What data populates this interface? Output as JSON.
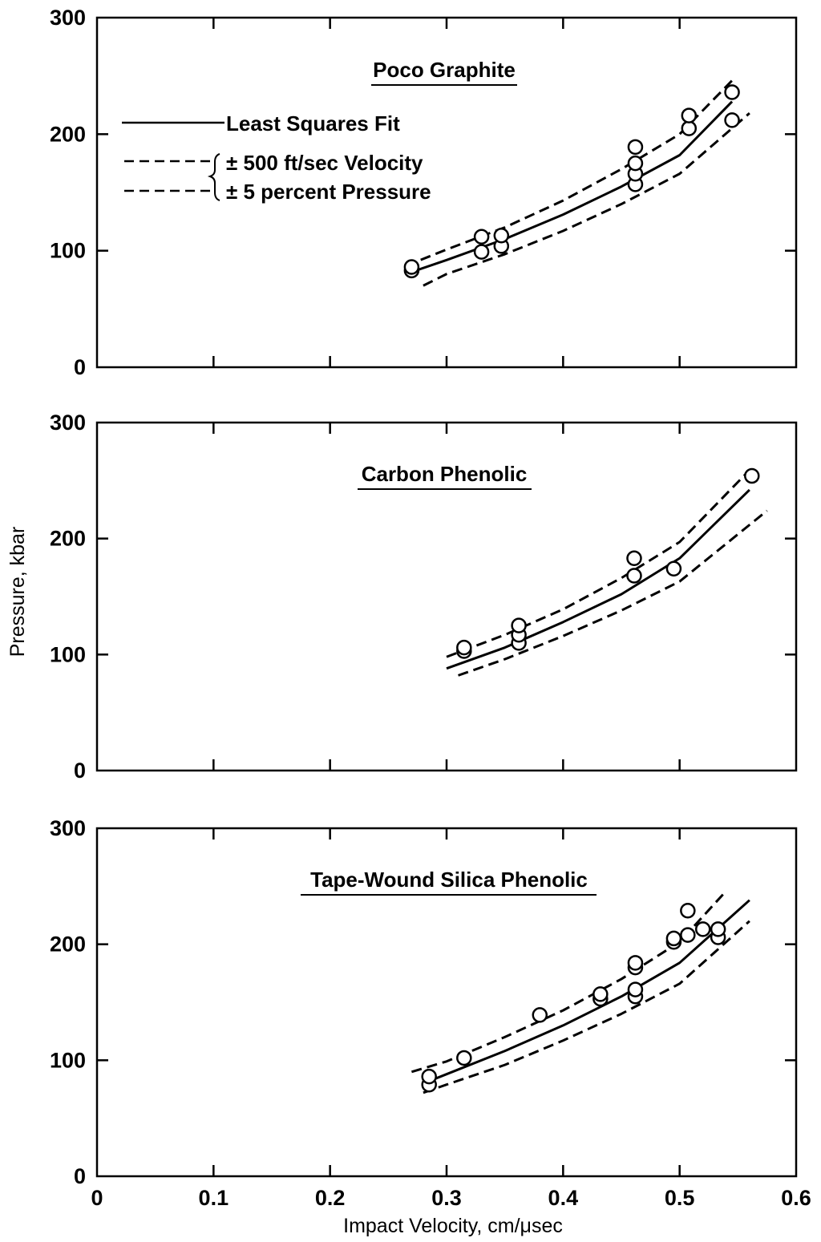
{
  "chart_data": [
    {
      "type": "scatter",
      "title": "Poco Graphite",
      "xlabel": "Impact Velocity, cm/μsec",
      "ylabel": "Pressure, kbar",
      "xlim": [
        0,
        0.6
      ],
      "ylim": [
        0,
        300
      ],
      "x_ticks": [
        "0",
        "0.1",
        "0.2",
        "0.3",
        "0.4",
        "0.5",
        "0.6"
      ],
      "y_ticks": [
        "0",
        "100",
        "200",
        "300"
      ],
      "show_x_tick_labels": false,
      "legend": {
        "placement": "top-left",
        "entries": [
          {
            "label": "Least Squares Fit",
            "style": "solid"
          },
          {
            "label": "± 500 ft/sec Velocity",
            "style": "dashed"
          },
          {
            "label": "± 5 percent Pressure",
            "style": "dashed"
          }
        ]
      },
      "series": [
        {
          "role": "fit",
          "style": "solid",
          "x": [
            0.265,
            0.3,
            0.35,
            0.4,
            0.45,
            0.5,
            0.545
          ],
          "y": [
            80,
            92,
            110,
            131,
            155,
            182,
            228
          ]
        },
        {
          "role": "upper",
          "style": "dashed",
          "x": [
            0.265,
            0.3,
            0.35,
            0.4,
            0.45,
            0.5,
            0.545
          ],
          "y": [
            87,
            101,
            120,
            143,
            170,
            200,
            246
          ]
        },
        {
          "role": "lower",
          "style": "dashed",
          "x": [
            0.28,
            0.3,
            0.35,
            0.4,
            0.45,
            0.5,
            0.56
          ],
          "y": [
            70,
            80,
            97,
            117,
            140,
            166,
            218
          ]
        },
        {
          "role": "data",
          "style": "circle",
          "x": [
            0.27,
            0.27,
            0.33,
            0.33,
            0.347,
            0.347,
            0.462,
            0.462,
            0.462,
            0.462,
            0.508,
            0.508,
            0.545,
            0.545
          ],
          "y": [
            83,
            86,
            99,
            112,
            104,
            113,
            157,
            166,
            175,
            189,
            205,
            216,
            212,
            236
          ]
        }
      ]
    },
    {
      "type": "scatter",
      "title": "Carbon Phenolic",
      "xlabel": "Impact Velocity, cm/μsec",
      "ylabel": "Pressure, kbar",
      "xlim": [
        0,
        0.6
      ],
      "ylim": [
        0,
        300
      ],
      "x_ticks": [
        "0",
        "0.1",
        "0.2",
        "0.3",
        "0.4",
        "0.5",
        "0.6"
      ],
      "y_ticks": [
        "0",
        "100",
        "200",
        "300"
      ],
      "show_x_tick_labels": false,
      "series": [
        {
          "role": "fit",
          "style": "solid",
          "x": [
            0.3,
            0.35,
            0.4,
            0.45,
            0.5,
            0.56
          ],
          "y": [
            88,
            106,
            128,
            152,
            183,
            242
          ]
        },
        {
          "role": "upper",
          "style": "dashed",
          "x": [
            0.3,
            0.35,
            0.4,
            0.45,
            0.5,
            0.56
          ],
          "y": [
            98,
            117,
            139,
            166,
            197,
            259
          ]
        },
        {
          "role": "lower",
          "style": "dashed",
          "x": [
            0.31,
            0.35,
            0.4,
            0.45,
            0.5,
            0.575
          ],
          "y": [
            82,
            96,
            116,
            138,
            163,
            224
          ]
        },
        {
          "role": "data",
          "style": "circle",
          "x": [
            0.315,
            0.315,
            0.362,
            0.362,
            0.362,
            0.461,
            0.461,
            0.495,
            0.562
          ],
          "y": [
            103,
            106,
            110,
            117,
            125,
            168,
            183,
            174,
            254
          ]
        }
      ]
    },
    {
      "type": "scatter",
      "title": "Tape-Wound Silica Phenolic",
      "xlabel": "Impact Velocity, cm/μsec",
      "ylabel": "Pressure, kbar",
      "xlim": [
        0,
        0.6
      ],
      "ylim": [
        0,
        300
      ],
      "x_ticks": [
        "0",
        "0.1",
        "0.2",
        "0.3",
        "0.4",
        "0.5",
        "0.6"
      ],
      "y_ticks": [
        "0",
        "100",
        "200",
        "300"
      ],
      "show_x_tick_labels": true,
      "series": [
        {
          "role": "fit",
          "style": "solid",
          "x": [
            0.28,
            0.3,
            0.35,
            0.4,
            0.45,
            0.5,
            0.56
          ],
          "y": [
            80,
            88,
            108,
            130,
            155,
            184,
            238
          ]
        },
        {
          "role": "upper",
          "style": "dashed",
          "x": [
            0.27,
            0.3,
            0.35,
            0.4,
            0.45,
            0.5,
            0.54
          ],
          "y": [
            90,
            99,
            120,
            143,
            170,
            202,
            246
          ]
        },
        {
          "role": "lower",
          "style": "dashed",
          "x": [
            0.28,
            0.3,
            0.35,
            0.4,
            0.45,
            0.5,
            0.56
          ],
          "y": [
            72,
            79,
            96,
            117,
            140,
            166,
            220
          ]
        },
        {
          "role": "data",
          "style": "circle",
          "x": [
            0.285,
            0.285,
            0.315,
            0.38,
            0.432,
            0.432,
            0.462,
            0.462,
            0.462,
            0.462,
            0.495,
            0.495,
            0.507,
            0.507,
            0.52,
            0.533,
            0.533
          ],
          "y": [
            79,
            86,
            102,
            139,
            153,
            157,
            155,
            161,
            180,
            184,
            202,
            205,
            208,
            229,
            213,
            206,
            213
          ]
        }
      ]
    }
  ],
  "figure_text": {
    "panel_titles": [
      "Poco Graphite",
      "Carbon Phenolic",
      "Tape-Wound Silica Phenolic"
    ],
    "y_axis_label": "Pressure, kbar",
    "x_axis_label": "Impact Velocity, cm/μsec",
    "y_tick_labels": [
      "0",
      "100",
      "200",
      "300"
    ],
    "x_tick_labels": [
      "0",
      "0.1",
      "0.2",
      "0.3",
      "0.4",
      "0.5",
      "0.6"
    ],
    "legend": {
      "fit": "Least Squares Fit",
      "velocity": "± 500 ft/sec Velocity",
      "pressure": "± 5 percent Pressure"
    }
  }
}
